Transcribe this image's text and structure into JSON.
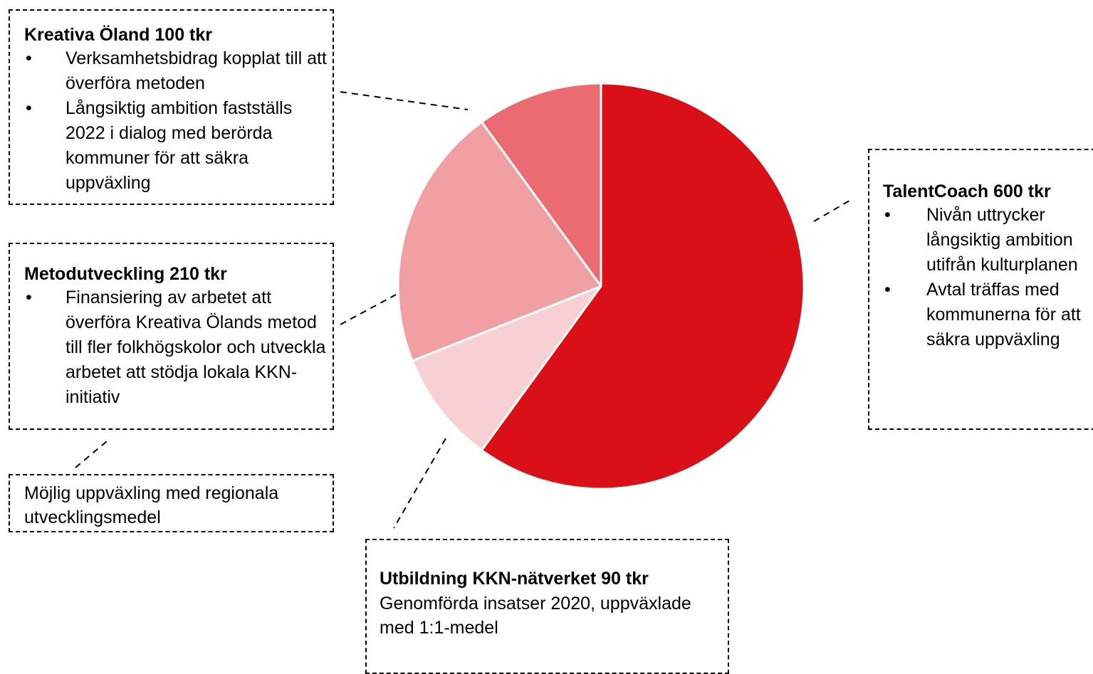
{
  "chart_data": {
    "type": "pie",
    "title": "",
    "slices": [
      {
        "label": "TalentCoach",
        "value": 600,
        "color": "#DA1019"
      },
      {
        "label": "Utbildning KKN-nätverket",
        "value": 90,
        "color": "#F6D0D2"
      },
      {
        "label": "Metodutveckling",
        "value": 210,
        "color": "#F09FA3"
      },
      {
        "label": "Kreativa Öland",
        "value": 100,
        "color": "#EA6C72"
      }
    ]
  },
  "callouts": {
    "kreativa": {
      "title": "Kreativa Öland 100 tkr",
      "bullets": [
        "Verksamhetsbidrag kopplat till att överföra metoden",
        "Långsiktig ambition fastställs 2022 i dialog med berörda kommuner för att säkra uppväxling"
      ]
    },
    "metod": {
      "title": "Metodutveckling 210 tkr",
      "bullets": [
        "Finansiering av arbetet att överföra Kreativa Ölands metod till fler folkhögskolor och utveckla arbetet att stödja lokala KKN-initiativ"
      ]
    },
    "mojlig": {
      "text": "Möjlig uppväxling med regionala utvecklingsmedel"
    },
    "talent": {
      "title": "TalentCoach 600 tkr",
      "bullets": [
        "Nivån uttrycker långsiktig ambition utifrån kulturplanen",
        "Avtal träffas med kommunerna för att säkra uppväxling"
      ]
    },
    "utb": {
      "title": "Utbildning KKN-nätverket 90 tkr",
      "text": "Genomförda insatser 2020, uppväxlade med 1:1-medel"
    }
  }
}
